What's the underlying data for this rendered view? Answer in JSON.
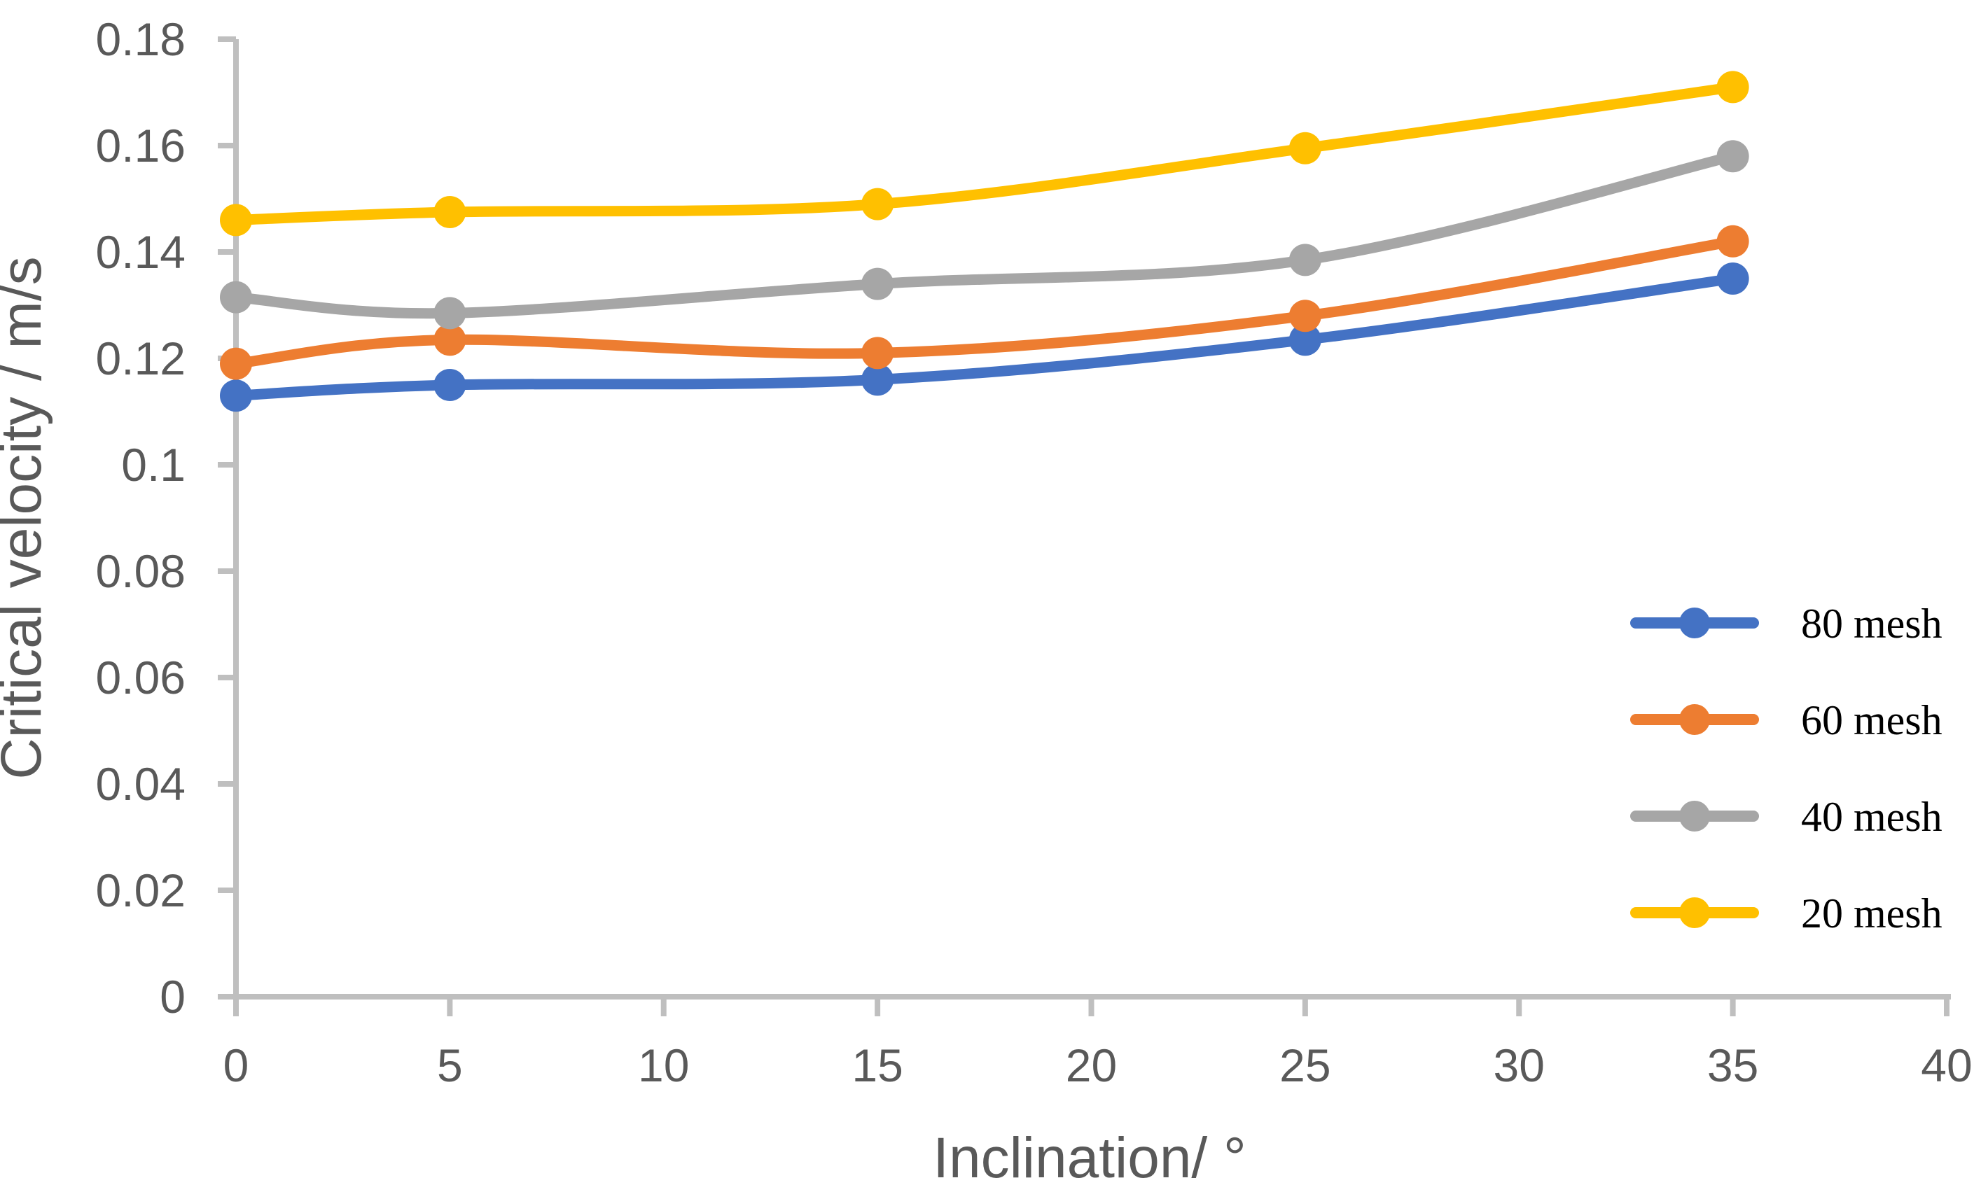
{
  "chart_data": {
    "type": "line",
    "title": "",
    "smooth_lines": true,
    "markers": "circle",
    "grid": false,
    "x": [
      0,
      5,
      15,
      25,
      35
    ],
    "x_axis": {
      "label": "Inclination/ °",
      "min": 0,
      "max": 40,
      "tick_step": 5,
      "ticks": [
        {
          "value": 0,
          "label": "0"
        },
        {
          "value": 5,
          "label": "5"
        },
        {
          "value": 10,
          "label": "10"
        },
        {
          "value": 15,
          "label": "15"
        },
        {
          "value": 20,
          "label": "20"
        },
        {
          "value": 25,
          "label": "25"
        },
        {
          "value": 30,
          "label": "30"
        },
        {
          "value": 35,
          "label": "35"
        },
        {
          "value": 40,
          "label": "40"
        }
      ]
    },
    "y_axis": {
      "label": "Critical velocity / m/s",
      "min": 0,
      "max": 0.18,
      "tick_step": 0.02,
      "ticks": [
        {
          "value": 0,
          "label": "0"
        },
        {
          "value": 0.02,
          "label": "0.02"
        },
        {
          "value": 0.04,
          "label": "0.04"
        },
        {
          "value": 0.06,
          "label": "0.06"
        },
        {
          "value": 0.08,
          "label": "0.08"
        },
        {
          "value": 0.1,
          "label": "0.1"
        },
        {
          "value": 0.12,
          "label": "0.12"
        },
        {
          "value": 0.14,
          "label": "0.14"
        },
        {
          "value": 0.16,
          "label": "0.16"
        },
        {
          "value": 0.18,
          "label": "0.18"
        }
      ]
    },
    "series": [
      {
        "name": "80 mesh",
        "color": "#4472C4",
        "values": [
          0.113,
          0.115,
          0.116,
          0.1235,
          0.135
        ]
      },
      {
        "name": "60 mesh",
        "color": "#ED7D31",
        "values": [
          0.119,
          0.1235,
          0.121,
          0.128,
          0.142
        ]
      },
      {
        "name": "40 mesh",
        "color": "#A6A6A6",
        "values": [
          0.1315,
          0.1285,
          0.134,
          0.1385,
          0.158
        ]
      },
      {
        "name": "20 mesh",
        "color": "#FFC000",
        "values": [
          0.146,
          0.1475,
          0.149,
          0.1595,
          0.171
        ]
      }
    ],
    "legend": {
      "position": "middle-right",
      "entries": [
        "80 mesh",
        "60 mesh",
        "40 mesh",
        "20 mesh"
      ]
    }
  },
  "theme": {
    "background": "#FFFFFF",
    "axis_line_color": "#BFBFBF",
    "tick_label_color": "#595959",
    "axis_title_color": "#595959",
    "legend_text_color": "#000000"
  }
}
